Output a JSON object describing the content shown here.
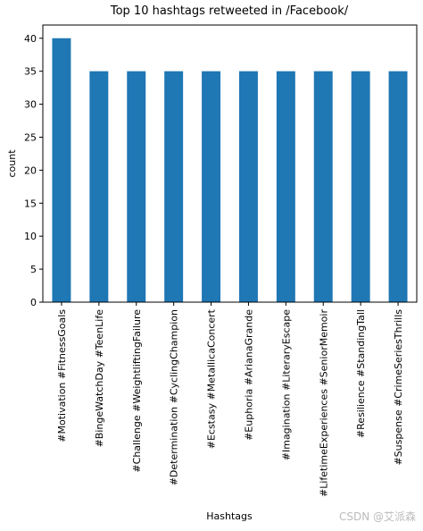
{
  "chart_data": {
    "type": "bar",
    "title": "Top 10 hashtags retweeted in /Facebook/",
    "categories": [
      "#Motivation #FitnessGoals",
      "#BingeWatchDay #TeenLife",
      "#Challenge #WeightliftingFailure",
      "#Determination #CyclingChampion",
      "#Ecstasy #MetallicaConcert",
      "#Euphoria #ArianaGrande",
      "#Imagination #LiteraryEscape",
      "#LifetimeExperiences #SeniorMemoir",
      "#Resilience #StandingTall",
      "#Suspense #CrimeSeriesThrills"
    ],
    "values": [
      40,
      35,
      35,
      35,
      35,
      35,
      35,
      35,
      35,
      35
    ],
    "color": "#1f77b4",
    "xlabel": "Hashtags",
    "ylabel": "count",
    "ylim": [
      0,
      42
    ],
    "yticks": [
      0,
      5,
      10,
      15,
      20,
      25,
      30,
      35,
      40
    ],
    "grid": false,
    "watermark": "CSDN @艾派森"
  }
}
